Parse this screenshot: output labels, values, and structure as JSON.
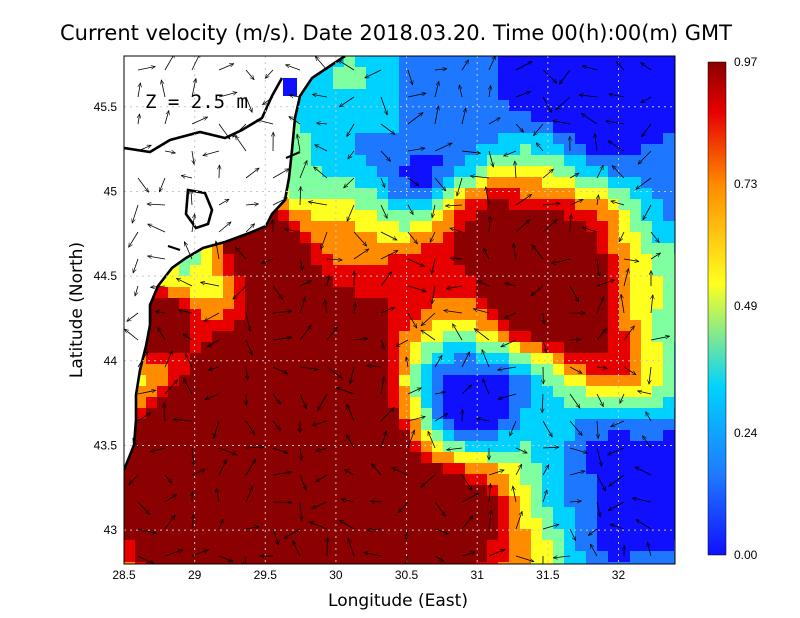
{
  "title": "Current velocity (m/s). Date 2018.03.20. Time 00(h):00(m) GMT",
  "depth_label": "Z  =  2.5 m",
  "x_axis": {
    "label": "Longitude (East)",
    "range": [
      28.5,
      32.4
    ],
    "ticks": [
      {
        "value": 28.5,
        "label": "28.5"
      },
      {
        "value": 29,
        "label": "29"
      },
      {
        "value": 29.5,
        "label": "29.5"
      },
      {
        "value": 30,
        "label": "30"
      },
      {
        "value": 30.5,
        "label": "30.5"
      },
      {
        "value": 31,
        "label": "31"
      },
      {
        "value": 31.5,
        "label": "31.5"
      },
      {
        "value": 32,
        "label": "32"
      }
    ]
  },
  "y_axis": {
    "label": "Latitude (North)",
    "range": [
      42.8,
      45.8
    ],
    "ticks": [
      {
        "value": 43,
        "label": "43"
      },
      {
        "value": 43.5,
        "label": "43.5"
      },
      {
        "value": 44,
        "label": "44"
      },
      {
        "value": 44.5,
        "label": "44.5"
      },
      {
        "value": 45,
        "label": "45"
      },
      {
        "value": 45.5,
        "label": "45.5"
      }
    ]
  },
  "colorbar": {
    "min": 0.0,
    "max": 0.97,
    "ticks": [
      {
        "value": 0.97,
        "label": "0.97"
      },
      {
        "value": 0.73,
        "label": "0.73"
      },
      {
        "value": 0.49,
        "label": "0.49"
      },
      {
        "value": 0.24,
        "label": "0.24"
      },
      {
        "value": 0.0,
        "label": "0.00"
      }
    ],
    "colors": [
      "#1010ff",
      "#1e78ff",
      "#00d2ff",
      "#ffff20",
      "#ff8c00",
      "#e60000",
      "#8b0000"
    ]
  },
  "grid": "dotted",
  "colors": {
    "land": "#ffffff",
    "coastline": "#000000",
    "arrows": "#000000"
  }
}
